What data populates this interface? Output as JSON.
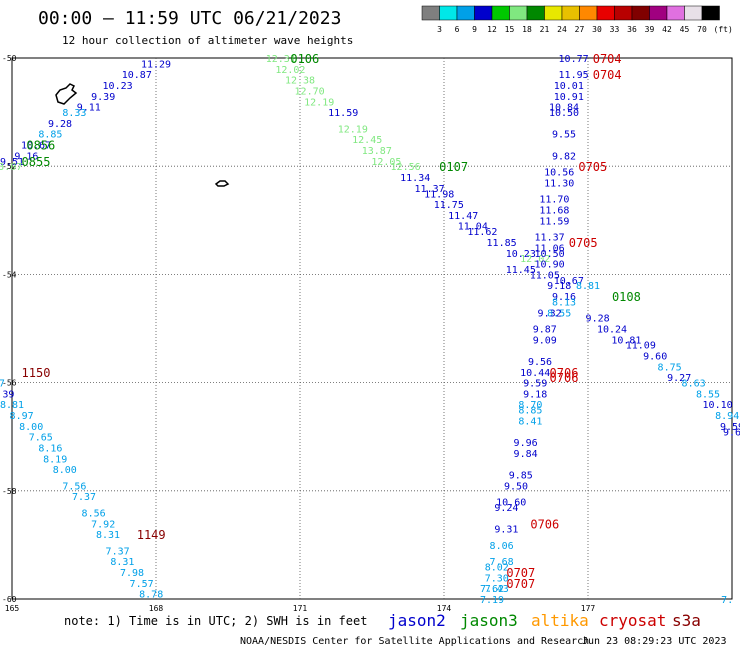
{
  "title": "00:00 – 11:59 UTC 06/21/2023",
  "subtitle": "12 hour collection of altimeter wave heights",
  "note": "note:  1) Time is in UTC; 2) SWH is in feet",
  "footer_left": "NOAA/NESDIS Center for Satellite Applications and Research",
  "footer_right": "Jun 23 08:29:23 UTC 2023",
  "satellites": [
    {
      "name": "jason2",
      "color": "#0000cc"
    },
    {
      "name": "jason3",
      "color": "#008800"
    },
    {
      "name": "altika",
      "color": "#ff9900"
    },
    {
      "name": "cryosat",
      "color": "#cc0000"
    },
    {
      "name": "s3a",
      "color": "#880000"
    }
  ],
  "scale": {
    "labels": [
      "3",
      "6",
      "9",
      "12",
      "15",
      "18",
      "21",
      "24",
      "27",
      "30",
      "33",
      "36",
      "39",
      "42",
      "45",
      "70"
    ],
    "unit": "(ft)",
    "colors": [
      "#7f7f7f",
      "#00e8e8",
      "#00a0e8",
      "#0000cc",
      "#00c800",
      "#80e880",
      "#008800",
      "#e8e800",
      "#e8c000",
      "#ff8800",
      "#e80000",
      "#b80000",
      "#800000",
      "#a00080",
      "#e070e0",
      "#e8e0e8",
      "#000000"
    ]
  },
  "chart_data": {
    "type": "scatter",
    "xlim": [
      165,
      180
    ],
    "ylim": [
      -60,
      -50
    ],
    "x_ticks": [
      "165",
      "168",
      "171",
      "174",
      "177"
    ],
    "y_ticks": [
      "-50",
      "-52",
      "-54",
      "-56",
      "-58",
      "-60"
    ],
    "grid": true,
    "values": [
      {
        "x": 168.0,
        "y": -50.1,
        "t": "11.29",
        "c": "#0000cc"
      },
      {
        "x": 167.6,
        "y": -50.3,
        "t": "10.87",
        "c": "#0000cc"
      },
      {
        "x": 167.2,
        "y": -50.5,
        "t": "10.23",
        "c": "#0000cc"
      },
      {
        "x": 166.9,
        "y": -50.7,
        "t": "9.39",
        "c": "#0000cc"
      },
      {
        "x": 166.6,
        "y": -50.9,
        "t": "9.11",
        "c": "#0000cc"
      },
      {
        "x": 166.3,
        "y": -51.0,
        "t": "8.33",
        "c": "#00a0e8"
      },
      {
        "x": 166.0,
        "y": -51.2,
        "t": "9.28",
        "c": "#0000cc"
      },
      {
        "x": 165.8,
        "y": -51.4,
        "t": "8.85",
        "c": "#00a0e8"
      },
      {
        "x": 165.5,
        "y": -51.6,
        "t": "10.67",
        "c": "#0000cc"
      },
      {
        "x": 165.3,
        "y": -51.8,
        "t": "9.16",
        "c": "#0000cc"
      },
      {
        "x": 165.0,
        "y": -51.9,
        "t": "9.51",
        "c": "#0000cc"
      },
      {
        "x": 164.9,
        "y": -52.0,
        "t": "13.07",
        "c": "#80e880"
      },
      {
        "x": 170.6,
        "y": -50.0,
        "t": "12.31",
        "c": "#80e880"
      },
      {
        "x": 170.8,
        "y": -50.2,
        "t": "12.02",
        "c": "#80e880"
      },
      {
        "x": 171.0,
        "y": -50.4,
        "t": "12.38",
        "c": "#80e880"
      },
      {
        "x": 171.2,
        "y": -50.6,
        "t": "12.70",
        "c": "#80e880"
      },
      {
        "x": 171.4,
        "y": -50.8,
        "t": "12.19",
        "c": "#80e880"
      },
      {
        "x": 171.9,
        "y": -51.0,
        "t": "11.59",
        "c": "#0000cc"
      },
      {
        "x": 172.1,
        "y": -51.3,
        "t": "12.19",
        "c": "#80e880"
      },
      {
        "x": 172.4,
        "y": -51.5,
        "t": "12.45",
        "c": "#80e880"
      },
      {
        "x": 172.6,
        "y": -51.7,
        "t": "13.87",
        "c": "#80e880"
      },
      {
        "x": 172.8,
        "y": -51.9,
        "t": "12.05",
        "c": "#80e880"
      },
      {
        "x": 173.2,
        "y": -52.0,
        "t": "12.56",
        "c": "#80e880"
      },
      {
        "x": 173.4,
        "y": -52.2,
        "t": "11.34",
        "c": "#0000cc"
      },
      {
        "x": 173.7,
        "y": -52.4,
        "t": "11.37",
        "c": "#0000cc"
      },
      {
        "x": 173.9,
        "y": -52.5,
        "t": "11.98",
        "c": "#0000cc"
      },
      {
        "x": 174.1,
        "y": -52.7,
        "t": "11.75",
        "c": "#0000cc"
      },
      {
        "x": 174.4,
        "y": -52.9,
        "t": "11.47",
        "c": "#0000cc"
      },
      {
        "x": 174.6,
        "y": -53.1,
        "t": "11.04",
        "c": "#0000cc"
      },
      {
        "x": 174.8,
        "y": -53.2,
        "t": "11.62",
        "c": "#0000cc"
      },
      {
        "x": 175.2,
        "y": -53.4,
        "t": "11.85",
        "c": "#0000cc"
      },
      {
        "x": 175.6,
        "y": -53.6,
        "t": "10.23",
        "c": "#0000cc"
      },
      {
        "x": 175.9,
        "y": -53.7,
        "t": "12.02",
        "c": "#80e880"
      },
      {
        "x": 175.6,
        "y": -53.9,
        "t": "11.45",
        "c": "#0000cc"
      },
      {
        "x": 176.1,
        "y": -54.0,
        "t": "11.05",
        "c": "#0000cc"
      },
      {
        "x": 176.4,
        "y": -54.2,
        "t": "9.18",
        "c": "#0000cc"
      },
      {
        "x": 176.5,
        "y": -54.4,
        "t": "9.16",
        "c": "#0000cc"
      },
      {
        "x": 176.5,
        "y": -54.5,
        "t": "8.13",
        "c": "#00a0e8"
      },
      {
        "x": 176.4,
        "y": -54.7,
        "t": "8.55",
        "c": "#00a0e8"
      },
      {
        "x": 177.2,
        "y": -54.8,
        "t": "9.28",
        "c": "#0000cc"
      },
      {
        "x": 177.5,
        "y": -55.0,
        "t": "10.24",
        "c": "#0000cc"
      },
      {
        "x": 177.8,
        "y": -55.2,
        "t": "10.81",
        "c": "#0000cc"
      },
      {
        "x": 178.1,
        "y": -55.3,
        "t": "11.09",
        "c": "#0000cc"
      },
      {
        "x": 178.4,
        "y": -55.5,
        "t": "9.60",
        "c": "#0000cc"
      },
      {
        "x": 178.7,
        "y": -55.7,
        "t": "8.75",
        "c": "#00a0e8"
      },
      {
        "x": 178.9,
        "y": -55.9,
        "t": "9.27",
        "c": "#0000cc"
      },
      {
        "x": 179.2,
        "y": -56.0,
        "t": "8.63",
        "c": "#00a0e8"
      },
      {
        "x": 179.5,
        "y": -56.2,
        "t": "8.55",
        "c": "#00a0e8"
      },
      {
        "x": 179.7,
        "y": -56.4,
        "t": "10.10",
        "c": "#0000cc"
      },
      {
        "x": 179.9,
        "y": -56.6,
        "t": "8.94",
        "c": "#00a0e8"
      },
      {
        "x": 180.0,
        "y": -56.8,
        "t": "9.59",
        "c": "#0000cc"
      },
      {
        "x": 180.0,
        "y": -56.9,
        "t": "9.6",
        "c": "#0000cc"
      },
      {
        "x": 176.7,
        "y": -50.0,
        "t": "10.77",
        "c": "#0000cc"
      },
      {
        "x": 176.7,
        "y": -50.3,
        "t": "11.95",
        "c": "#0000cc"
      },
      {
        "x": 176.6,
        "y": -50.5,
        "t": "10.01",
        "c": "#0000cc"
      },
      {
        "x": 176.6,
        "y": -50.7,
        "t": "10.91",
        "c": "#0000cc"
      },
      {
        "x": 176.5,
        "y": -50.9,
        "t": "10.84",
        "c": "#0000cc"
      },
      {
        "x": 176.5,
        "y": -51.0,
        "t": "10.50",
        "c": "#0000cc"
      },
      {
        "x": 176.5,
        "y": -51.4,
        "t": "9.55",
        "c": "#0000cc"
      },
      {
        "x": 176.5,
        "y": -51.8,
        "t": "9.82",
        "c": "#0000cc"
      },
      {
        "x": 176.4,
        "y": -52.1,
        "t": "10.56",
        "c": "#0000cc"
      },
      {
        "x": 176.4,
        "y": -52.3,
        "t": "11.30",
        "c": "#0000cc"
      },
      {
        "x": 176.3,
        "y": -52.6,
        "t": "11.70",
        "c": "#0000cc"
      },
      {
        "x": 176.3,
        "y": -52.8,
        "t": "11.68",
        "c": "#0000cc"
      },
      {
        "x": 176.3,
        "y": -53.0,
        "t": "11.59",
        "c": "#0000cc"
      },
      {
        "x": 176.2,
        "y": -53.3,
        "t": "11.37",
        "c": "#0000cc"
      },
      {
        "x": 176.2,
        "y": -53.5,
        "t": "11.06",
        "c": "#0000cc"
      },
      {
        "x": 176.2,
        "y": -53.6,
        "t": "10.50",
        "c": "#0000cc"
      },
      {
        "x": 176.2,
        "y": -53.8,
        "t": "10.90",
        "c": "#0000cc"
      },
      {
        "x": 176.6,
        "y": -54.1,
        "t": "10.67",
        "c": "#0000cc"
      },
      {
        "x": 177.0,
        "y": -54.2,
        "t": "8.81",
        "c": "#00a0e8"
      },
      {
        "x": 176.2,
        "y": -54.7,
        "t": "9.32",
        "c": "#0000cc"
      },
      {
        "x": 176.1,
        "y": -55.0,
        "t": "9.87",
        "c": "#0000cc"
      },
      {
        "x": 176.1,
        "y": -55.2,
        "t": "9.09",
        "c": "#0000cc"
      },
      {
        "x": 176.0,
        "y": -55.6,
        "t": "9.56",
        "c": "#0000cc"
      },
      {
        "x": 175.9,
        "y": -55.8,
        "t": "10.44",
        "c": "#0000cc"
      },
      {
        "x": 175.9,
        "y": -56.0,
        "t": "9.59",
        "c": "#0000cc"
      },
      {
        "x": 175.9,
        "y": -56.2,
        "t": "9.18",
        "c": "#0000cc"
      },
      {
        "x": 175.8,
        "y": -56.4,
        "t": "8.70",
        "c": "#00a0e8"
      },
      {
        "x": 175.8,
        "y": -56.5,
        "t": "8.85",
        "c": "#00a0e8"
      },
      {
        "x": 175.8,
        "y": -56.7,
        "t": "8.41",
        "c": "#00a0e8"
      },
      {
        "x": 175.7,
        "y": -57.1,
        "t": "9.96",
        "c": "#0000cc"
      },
      {
        "x": 175.7,
        "y": -57.3,
        "t": "9.84",
        "c": "#0000cc"
      },
      {
        "x": 175.6,
        "y": -57.7,
        "t": "9.85",
        "c": "#0000cc"
      },
      {
        "x": 175.5,
        "y": -57.9,
        "t": "9.50",
        "c": "#0000cc"
      },
      {
        "x": 175.4,
        "y": -58.2,
        "t": "10.60",
        "c": "#0000cc"
      },
      {
        "x": 175.3,
        "y": -58.3,
        "t": "9.24",
        "c": "#0000cc"
      },
      {
        "x": 175.3,
        "y": -58.7,
        "t": "9.31",
        "c": "#0000cc"
      },
      {
        "x": 175.2,
        "y": -59.0,
        "t": "8.06",
        "c": "#00a0e8"
      },
      {
        "x": 175.2,
        "y": -59.3,
        "t": "7.68",
        "c": "#00a0e8"
      },
      {
        "x": 175.1,
        "y": -59.4,
        "t": "8.02",
        "c": "#00a0e8"
      },
      {
        "x": 175.1,
        "y": -59.6,
        "t": "7.30",
        "c": "#00a0e8"
      },
      {
        "x": 175.1,
        "y": -59.8,
        "t": "7.43",
        "c": "#00a0e8"
      },
      {
        "x": 175.0,
        "y": -59.8,
        "t": "7.62",
        "c": "#00a0e8"
      },
      {
        "x": 175.0,
        "y": -60.0,
        "t": "7.19",
        "c": "#00a0e8"
      },
      {
        "x": 164.5,
        "y": -55.8,
        "t": "8.68",
        "c": "#00a0e8"
      },
      {
        "x": 164.6,
        "y": -56.0,
        "t": "8.37",
        "c": "#00a0e8"
      },
      {
        "x": 164.8,
        "y": -56.2,
        "t": "9.39",
        "c": "#0000cc"
      },
      {
        "x": 165.0,
        "y": -56.4,
        "t": "8.81",
        "c": "#00a0e8"
      },
      {
        "x": 165.2,
        "y": -56.6,
        "t": "8.97",
        "c": "#00a0e8"
      },
      {
        "x": 165.4,
        "y": -56.8,
        "t": "8.00",
        "c": "#00a0e8"
      },
      {
        "x": 165.6,
        "y": -57.0,
        "t": "7.65",
        "c": "#00a0e8"
      },
      {
        "x": 165.8,
        "y": -57.2,
        "t": "8.16",
        "c": "#00a0e8"
      },
      {
        "x": 165.9,
        "y": -57.4,
        "t": "8.19",
        "c": "#00a0e8"
      },
      {
        "x": 166.1,
        "y": -57.6,
        "t": "8.00",
        "c": "#00a0e8"
      },
      {
        "x": 166.3,
        "y": -57.9,
        "t": "7.56",
        "c": "#00a0e8"
      },
      {
        "x": 166.5,
        "y": -58.1,
        "t": "7.37",
        "c": "#00a0e8"
      },
      {
        "x": 166.7,
        "y": -58.4,
        "t": "8.56",
        "c": "#00a0e8"
      },
      {
        "x": 166.9,
        "y": -58.6,
        "t": "7.92",
        "c": "#00a0e8"
      },
      {
        "x": 167.0,
        "y": -58.8,
        "t": "8.31",
        "c": "#00a0e8"
      },
      {
        "x": 167.2,
        "y": -59.1,
        "t": "7.37",
        "c": "#00a0e8"
      },
      {
        "x": 167.3,
        "y": -59.3,
        "t": "8.31",
        "c": "#00a0e8"
      },
      {
        "x": 167.5,
        "y": -59.5,
        "t": "7.98",
        "c": "#00a0e8"
      },
      {
        "x": 167.7,
        "y": -59.7,
        "t": "7.57",
        "c": "#00a0e8"
      },
      {
        "x": 167.9,
        "y": -59.9,
        "t": "8.78",
        "c": "#00a0e8"
      },
      {
        "x": 179.9,
        "y": -60.0,
        "t": "7.",
        "c": "#00a0e8"
      }
    ],
    "time_labels": [
      {
        "x": 171.1,
        "y": -50.0,
        "t": "0106",
        "c": "#008800"
      },
      {
        "x": 165.6,
        "y": -51.6,
        "t": "0856",
        "c": "#008800"
      },
      {
        "x": 165.5,
        "y": -51.9,
        "t": "0855",
        "c": "#008800"
      },
      {
        "x": 174.2,
        "y": -52.0,
        "t": "0107",
        "c": "#008800"
      },
      {
        "x": 177.8,
        "y": -54.4,
        "t": "0108",
        "c": "#008800"
      },
      {
        "x": 177.4,
        "y": -50.0,
        "t": "0704",
        "c": "#cc0000"
      },
      {
        "x": 177.4,
        "y": -50.3,
        "t": "0704",
        "c": "#cc0000"
      },
      {
        "x": 177.1,
        "y": -52.0,
        "t": "0705",
        "c": "#cc0000"
      },
      {
        "x": 176.9,
        "y": -53.4,
        "t": "0705",
        "c": "#cc0000"
      },
      {
        "x": 176.5,
        "y": -55.8,
        "t": "0706",
        "c": "#cc0000"
      },
      {
        "x": 176.5,
        "y": -55.9,
        "t": "0706",
        "c": "#cc0000"
      },
      {
        "x": 176.1,
        "y": -58.6,
        "t": "0706",
        "c": "#cc0000"
      },
      {
        "x": 175.6,
        "y": -59.5,
        "t": "0707",
        "c": "#cc0000"
      },
      {
        "x": 175.6,
        "y": -59.7,
        "t": "0707",
        "c": "#cc0000"
      },
      {
        "x": 165.5,
        "y": -55.8,
        "t": "1150",
        "c": "#880000"
      },
      {
        "x": 167.9,
        "y": -58.8,
        "t": "1149",
        "c": "#880000"
      }
    ]
  }
}
